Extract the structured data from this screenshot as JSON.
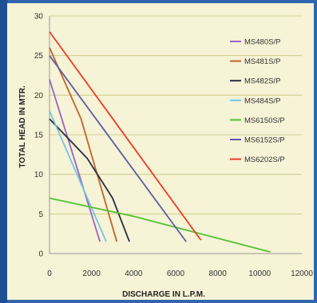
{
  "chart_data": {
    "type": "line",
    "xlabel": "DISCHARGE IN L.P.M.",
    "ylabel": "TOTAL HEAD IN MTR.",
    "xlim": [
      0,
      12000
    ],
    "ylim": [
      0,
      30
    ],
    "x_ticks": [
      "0",
      "2000",
      "4000",
      "6000",
      "8000",
      "10000",
      "12000"
    ],
    "y_ticks": [
      "0",
      "5",
      "10",
      "15",
      "20",
      "25",
      "30"
    ],
    "grid": "horizontal",
    "legend_position": "right",
    "series": [
      {
        "name": "MS480S/P",
        "color": "#9a63c4",
        "points": [
          [
            0,
            22
          ],
          [
            2400,
            1.5
          ]
        ]
      },
      {
        "name": "MS481S/P",
        "color": "#c0642a",
        "points": [
          [
            0,
            26
          ],
          [
            1500,
            17
          ],
          [
            3200,
            1.5
          ]
        ]
      },
      {
        "name": "MS482S/P",
        "color": "#2c2c44",
        "points": [
          [
            0,
            17
          ],
          [
            1800,
            12
          ],
          [
            3000,
            7
          ],
          [
            3800,
            1.5
          ]
        ]
      },
      {
        "name": "MS484S/P",
        "color": "#6fc6e8",
        "points": [
          [
            0,
            18
          ],
          [
            2700,
            1.5
          ]
        ]
      },
      {
        "name": "MS6150S/P",
        "color": "#52c233",
        "points": [
          [
            0,
            7
          ],
          [
            4000,
            4.7
          ],
          [
            10500,
            0.2
          ]
        ]
      },
      {
        "name": "MS6152S/P",
        "color": "#5a5ea6",
        "points": [
          [
            0,
            25
          ],
          [
            6500,
            1.5
          ]
        ]
      },
      {
        "name": "MS6202S/P",
        "color": "#ef3b24",
        "points": [
          [
            0,
            28
          ],
          [
            7200,
            1.7
          ]
        ]
      }
    ]
  }
}
